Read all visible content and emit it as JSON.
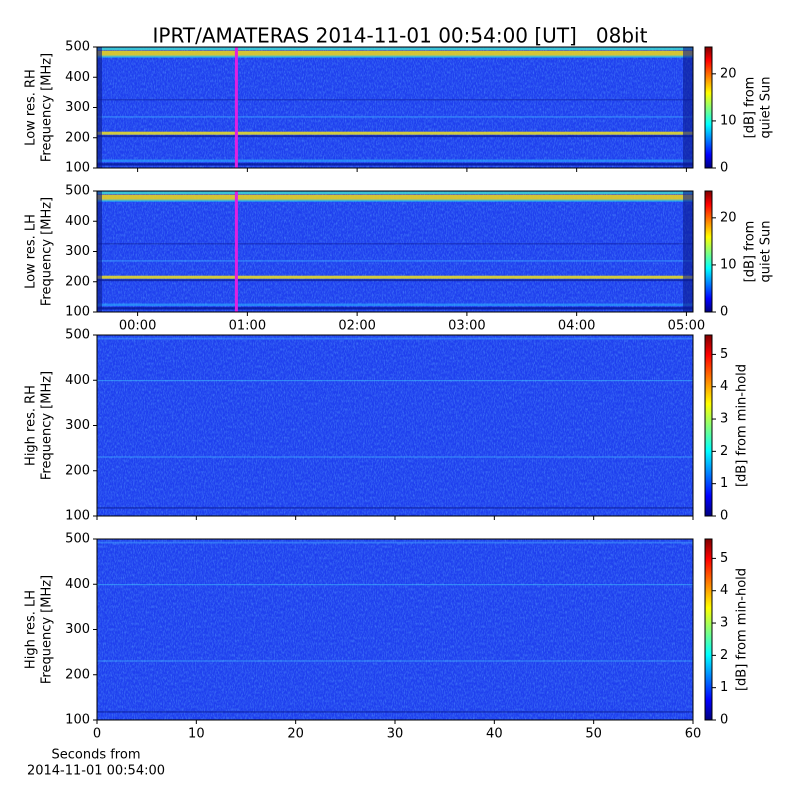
{
  "title": "IPRT/AMATERAS 2014-11-01 00:54:00 [UT]   08bit",
  "chart_data": [
    {
      "type": "heatmap",
      "ylabel": [
        "Low res. RH",
        "Frequency [MHz]"
      ],
      "xlim": [
        -0.37,
        5.06
      ],
      "ylim": [
        100,
        500
      ],
      "yticks": [
        100,
        200,
        300,
        400,
        500
      ],
      "cmap": "jet",
      "clim": [
        0,
        25.7
      ],
      "cticks": [
        0,
        10,
        20
      ],
      "clabel": [
        "[dB] from",
        "quiet Sun"
      ],
      "marker_x": 0.9,
      "marker_color": "#e020e0"
    },
    {
      "type": "heatmap",
      "ylabel": [
        "Low res. LH",
        "Frequency [MHz]"
      ],
      "xlim": [
        -0.37,
        5.06
      ],
      "ylim": [
        100,
        500
      ],
      "yticks": [
        100,
        200,
        300,
        400,
        500
      ],
      "xticks": [
        {
          "value": 0,
          "label": "00:00"
        },
        {
          "value": 1,
          "label": "01:00"
        },
        {
          "value": 2,
          "label": "02:00"
        },
        {
          "value": 3,
          "label": "03:00"
        },
        {
          "value": 4,
          "label": "04:00"
        },
        {
          "value": 5,
          "label": "05:00"
        }
      ],
      "cmap": "jet",
      "clim": [
        0,
        25.7
      ],
      "cticks": [
        0,
        10,
        20
      ],
      "clabel": [
        "[dB] from",
        "quiet Sun"
      ],
      "marker_x": 0.9,
      "marker_color": "#e020e0"
    },
    {
      "type": "heatmap",
      "ylabel": [
        "High res. RH",
        "Frequency [MHz]"
      ],
      "xlim": [
        0,
        60
      ],
      "ylim": [
        100,
        500
      ],
      "yticks": [
        100,
        200,
        300,
        400,
        500
      ],
      "cmap": "jet",
      "clim": [
        0,
        5.6
      ],
      "cticks": [
        0,
        1,
        2,
        3,
        4,
        5
      ],
      "clabel": [
        "[dB] from min-hold"
      ]
    },
    {
      "type": "heatmap",
      "ylabel": [
        "High res. LH",
        "Frequency [MHz]"
      ],
      "xlim": [
        0,
        60
      ],
      "ylim": [
        100,
        500
      ],
      "yticks": [
        100,
        200,
        300,
        400,
        500
      ],
      "xticks": [
        0,
        10,
        20,
        30,
        40,
        50,
        60
      ],
      "xlabel": [
        "Seconds from",
        "2014-11-01 00:54:00"
      ],
      "cmap": "jet",
      "clim": [
        0,
        5.6
      ],
      "cticks": [
        0,
        1,
        2,
        3,
        4,
        5
      ],
      "clabel": [
        "[dB] from min-hold"
      ]
    }
  ]
}
